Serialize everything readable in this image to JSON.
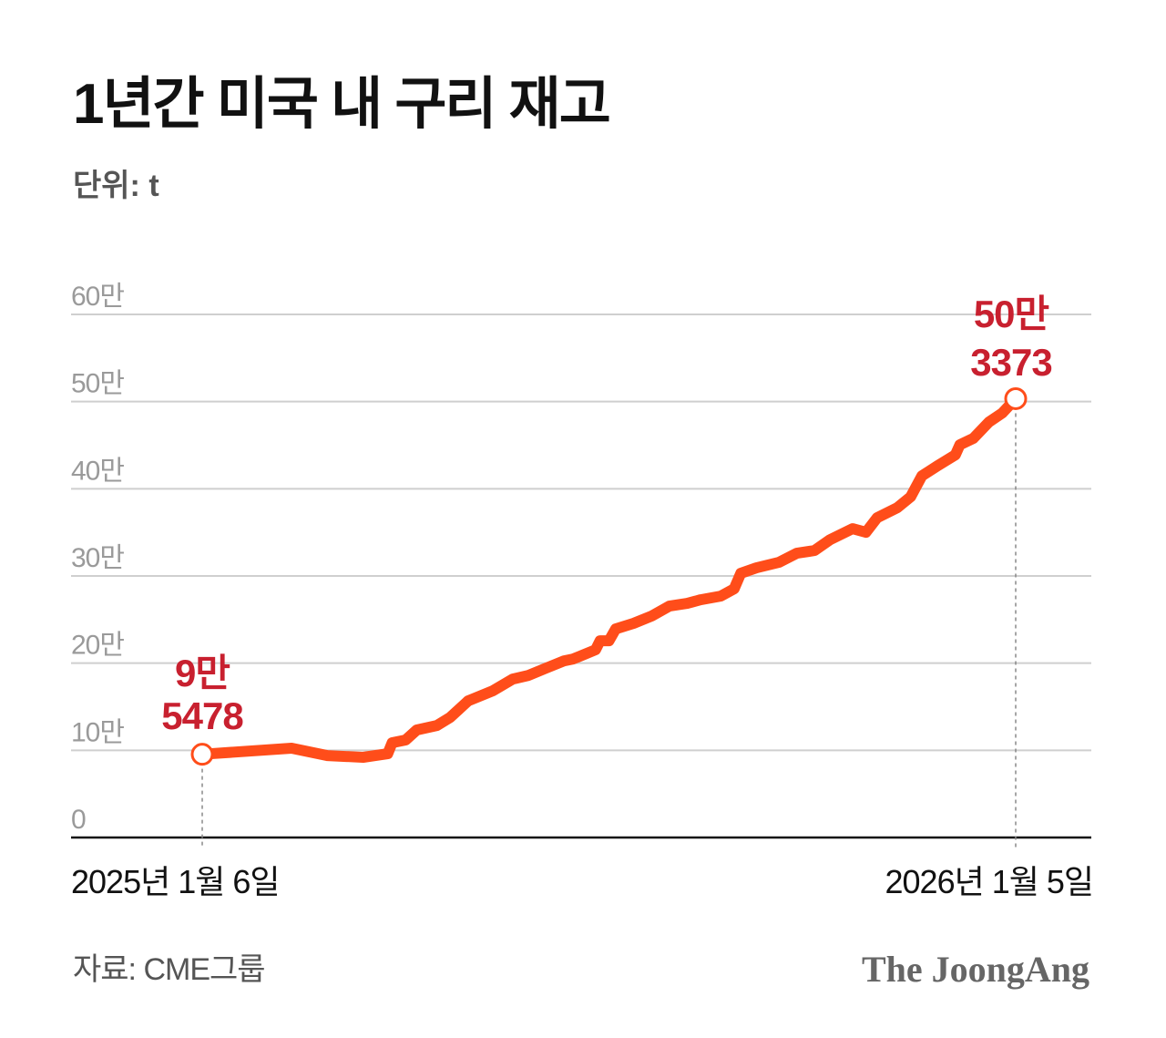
{
  "chart_data": {
    "type": "line",
    "title": "1년간 미국 내 구리 재고",
    "unit_label": "단위: t",
    "ylim": [
      0,
      600000
    ],
    "y_ticks": [
      {
        "value": 0,
        "label": "0"
      },
      {
        "value": 100000,
        "label": "10만"
      },
      {
        "value": 200000,
        "label": "20만"
      },
      {
        "value": 300000,
        "label": "30만"
      },
      {
        "value": 400000,
        "label": "40만"
      },
      {
        "value": 500000,
        "label": "50만"
      },
      {
        "value": 600000,
        "label": "60만"
      }
    ],
    "x_range": [
      "2025-01-06",
      "2026-01-05"
    ],
    "x_tick_labels": [
      "2025년 1월 6일",
      "2026년 1월 5일"
    ],
    "grid": true,
    "line_color": "#ff4d1a",
    "annotation_color": "#c8202f",
    "annotations": [
      {
        "x": "2025-01-06",
        "value": 95478,
        "line1": "9만",
        "line2": "5478"
      },
      {
        "x": "2026-01-05",
        "value": 503373,
        "line1": "50만",
        "line2": "3373"
      }
    ],
    "points": [
      [
        "2025-01-06",
        95478
      ],
      [
        "2025-02-15",
        102400
      ],
      [
        "2025-03-03",
        94000
      ],
      [
        "2025-03-19",
        92000
      ],
      [
        "2025-03-30",
        96100
      ],
      [
        "2025-04-01",
        108700
      ],
      [
        "2025-04-07",
        111800
      ],
      [
        "2025-04-12",
        123300
      ],
      [
        "2025-04-21",
        128500
      ],
      [
        "2025-04-27",
        137900
      ],
      [
        "2025-05-05",
        156700
      ],
      [
        "2025-05-16",
        168200
      ],
      [
        "2025-05-25",
        181800
      ],
      [
        "2025-06-01",
        186000
      ],
      [
        "2025-06-09",
        194400
      ],
      [
        "2025-06-17",
        202700
      ],
      [
        "2025-06-21",
        204800
      ],
      [
        "2025-07-01",
        215300
      ],
      [
        "2025-07-03",
        225700
      ],
      [
        "2025-07-07",
        225700
      ],
      [
        "2025-07-10",
        239300
      ],
      [
        "2025-07-18",
        245600
      ],
      [
        "2025-07-26",
        253900
      ],
      [
        "2025-08-03",
        265400
      ],
      [
        "2025-08-11",
        268500
      ],
      [
        "2025-08-17",
        272700
      ],
      [
        "2025-08-26",
        276900
      ],
      [
        "2025-09-01",
        285300
      ],
      [
        "2025-09-04",
        303000
      ],
      [
        "2025-09-11",
        309300
      ],
      [
        "2025-09-21",
        315600
      ],
      [
        "2025-09-29",
        326000
      ],
      [
        "2025-10-07",
        329200
      ],
      [
        "2025-10-14",
        341700
      ],
      [
        "2025-10-24",
        354200
      ],
      [
        "2025-10-30",
        350100
      ],
      [
        "2025-11-04",
        366800
      ],
      [
        "2025-11-13",
        378300
      ],
      [
        "2025-11-19",
        390800
      ],
      [
        "2025-11-24",
        414800
      ],
      [
        "2025-12-01",
        426300
      ],
      [
        "2025-12-09",
        438900
      ],
      [
        "2025-12-11",
        450400
      ],
      [
        "2025-12-17",
        457700
      ],
      [
        "2025-12-24",
        476500
      ],
      [
        "2025-12-30",
        486900
      ],
      [
        "2026-01-05",
        503373
      ]
    ]
  },
  "source": "자료: CME그룹",
  "logo": "The JoongAng"
}
